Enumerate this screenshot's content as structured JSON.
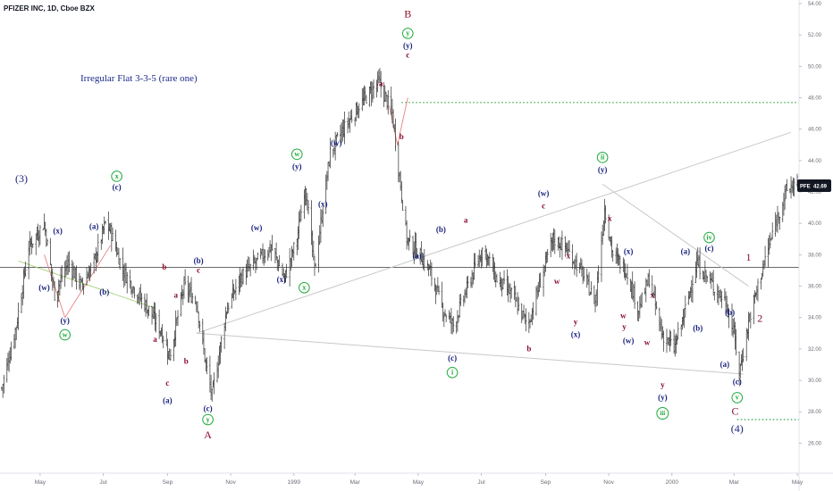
{
  "header": {
    "symbol_line": "PFIZER INC, 1D, Cboe BZX"
  },
  "annotation_title": "Irregular Flat 3-3-5 (rare one)",
  "price_tag": {
    "symbol": "PFE",
    "value": "42.69"
  },
  "colors": {
    "navy": "#1a237e",
    "maroon": "#8b0d2c",
    "green": "#1faa3c",
    "bar": "#2b2b2b",
    "dotted_green": "#26a23c",
    "trend_gray": "#c8c8c8",
    "horizontal": "#555555",
    "price_tag_bg": "#131722"
  },
  "chart_data": {
    "type": "line",
    "subtitle": "PFIZER INC, 1D, Cboe BZX",
    "title": "Irregular Flat 3-3-5 (rare one)",
    "ylim": [
      25,
      54
    ],
    "y_ticks": [
      "26.00",
      "28.00",
      "30.00",
      "32.00",
      "34.00",
      "36.00",
      "38.00",
      "40.00",
      "42.00",
      "44.00",
      "46.00",
      "48.00",
      "50.00",
      "52.00",
      "54.00"
    ],
    "x_ticks": [
      "May",
      "Jul",
      "Sep",
      "Nov",
      "1999",
      "Mar",
      "May",
      "Jul",
      "Sep",
      "Nov",
      "2000",
      "Mar",
      "May"
    ],
    "x_dates": [
      "1998-03-25",
      "1998-05-01",
      "1998-07-01",
      "1998-09-01",
      "1998-11-01",
      "1999-01-01",
      "1999-03-01",
      "1999-05-01",
      "1999-07-01",
      "1999-09-01",
      "1999-11-01",
      "2000-01-01",
      "2000-03-01",
      "2000-05-01"
    ],
    "series": [
      {
        "x": [
          "1998-03-25",
          "1998-04-08",
          "1998-04-20",
          "1998-05-05",
          "1998-05-15",
          "1998-05-28",
          "1998-06-10",
          "1998-06-22",
          "1998-07-03",
          "1998-07-08",
          "1998-07-20",
          "1998-08-03",
          "1998-08-14",
          "1998-08-27",
          "1998-09-03",
          "1998-09-17",
          "1998-09-29",
          "1998-10-08",
          "1998-10-14",
          "1998-10-28",
          "1998-11-10",
          "1998-11-25",
          "1998-12-10",
          "1998-12-23",
          "1999-01-04",
          "1999-01-12",
          "1999-01-21",
          "1999-02-05",
          "1999-02-18",
          "1999-03-05",
          "1999-03-24",
          "1999-04-06",
          "1999-04-13",
          "1999-04-20",
          "1999-05-03",
          "1999-05-12",
          "1999-05-25",
          "1999-06-04",
          "1999-06-18",
          "1999-07-03",
          "1999-07-15",
          "1999-07-30",
          "1999-08-15",
          "1999-08-30",
          "1999-09-08",
          "1999-09-20",
          "1999-10-05",
          "1999-10-19",
          "1999-10-28",
          "1999-11-05",
          "1999-11-18",
          "1999-11-30",
          "1999-12-10",
          "1999-12-22",
          "2000-01-03",
          "2000-01-12",
          "2000-01-25",
          "2000-02-10",
          "2000-02-22",
          "2000-03-01",
          "2000-03-06",
          "2000-03-16",
          "2000-03-28",
          "2000-04-10",
          "2000-04-20",
          "2000-05-01"
        ],
        "values": [
          29.5,
          33.5,
          38.5,
          40.0,
          35.5,
          37.5,
          36.0,
          37.5,
          40.0,
          39.5,
          37.0,
          35.5,
          34.5,
          33.0,
          31.5,
          36.0,
          35.0,
          31.0,
          29.0,
          34.5,
          36.5,
          37.5,
          38.5,
          36.5,
          39.0,
          42.5,
          37.0,
          44.5,
          46.0,
          47.5,
          49.0,
          47.0,
          43.0,
          39.0,
          38.0,
          37.0,
          34.5,
          33.5,
          36.0,
          38.5,
          36.5,
          35.5,
          33.5,
          37.0,
          39.0,
          38.5,
          37.0,
          35.0,
          41.0,
          38.0,
          37.0,
          34.5,
          36.5,
          33.0,
          32.0,
          34.0,
          37.5,
          36.0,
          35.0,
          33.0,
          30.5,
          34.0,
          37.0,
          40.0,
          42.0,
          42.7
        ]
      }
    ],
    "horizontal_lines": [
      {
        "y": 37.2,
        "style": "solid"
      },
      {
        "y": 47.7,
        "style": "dotted",
        "from": "1999-04-15",
        "to": "2000-05-01"
      },
      {
        "y": 27.5,
        "style": "dotted",
        "from": "2000-03-04",
        "to": "2000-05-01"
      }
    ],
    "trendlines": [
      {
        "from": [
          "1998-09-29",
          33.0
        ],
        "to": [
          "2000-04-25",
          45.8
        ]
      },
      {
        "from": [
          "1998-09-29",
          33.0
        ],
        "to": [
          "2000-03-10",
          30.4
        ]
      },
      {
        "from": [
          "1999-10-26",
          42.5
        ],
        "to": [
          "2000-03-15",
          36.0
        ]
      }
    ],
    "red_triangle_lines": [
      {
        "from": [
          "1998-05-25",
          34.0
        ],
        "to": [
          "1998-07-08",
          38.6
        ]
      },
      {
        "from": [
          "1998-05-25",
          34.0
        ],
        "to": [
          "1998-05-05",
          38.0
        ]
      },
      {
        "from": [
          "1999-04-03",
          47.5
        ],
        "to": [
          "1999-04-11",
          45.0
        ]
      },
      {
        "from": [
          "1999-04-11",
          45.0
        ],
        "to": [
          "1999-04-21",
          48.0
        ]
      }
    ],
    "wave_labels": [
      {
        "text": "(3)",
        "x": "1998-04-13",
        "y": 42.8,
        "color": "navy",
        "size": 12
      },
      {
        "text": "(x)",
        "x": "1998-05-18",
        "y": 39.5,
        "color": "navy",
        "size": 9
      },
      {
        "text": "(w)",
        "x": "1998-05-05",
        "y": 35.9,
        "color": "navy",
        "size": 9
      },
      {
        "text": "(y)",
        "x": "1998-05-25",
        "y": 33.8,
        "color": "navy",
        "size": 9
      },
      {
        "text": "w",
        "x": "1998-05-25",
        "y": 32.9,
        "color": "green",
        "size": 9,
        "circled": true
      },
      {
        "text": "(a)",
        "x": "1998-06-22",
        "y": 39.8,
        "color": "navy",
        "size": 9
      },
      {
        "text": "(b)",
        "x": "1998-07-02",
        "y": 35.6,
        "color": "navy",
        "size": 9
      },
      {
        "text": "x",
        "x": "1998-07-14",
        "y": 43.0,
        "color": "green",
        "size": 9,
        "circled": true
      },
      {
        "text": "(c)",
        "x": "1998-07-14",
        "y": 42.3,
        "color": "navy",
        "size": 9
      },
      {
        "text": "a",
        "x": "1998-08-20",
        "y": 32.6,
        "color": "maroon",
        "size": 9
      },
      {
        "text": "b",
        "x": "1998-08-29",
        "y": 37.2,
        "color": "maroon",
        "size": 9
      },
      {
        "text": "c",
        "x": "1998-09-01",
        "y": 29.8,
        "color": "maroon",
        "size": 9
      },
      {
        "text": "(a)",
        "x": "1998-09-01",
        "y": 28.7,
        "color": "navy",
        "size": 9
      },
      {
        "text": "a",
        "x": "1998-09-09",
        "y": 35.4,
        "color": "maroon",
        "size": 9
      },
      {
        "text": "b",
        "x": "1998-09-19",
        "y": 31.2,
        "color": "maroon",
        "size": 9
      },
      {
        "text": "(b)",
        "x": "1998-10-01",
        "y": 37.6,
        "color": "navy",
        "size": 9
      },
      {
        "text": "c",
        "x": "1998-10-01",
        "y": 37.0,
        "color": "maroon",
        "size": 9
      },
      {
        "text": "(c)",
        "x": "1998-10-10",
        "y": 28.2,
        "color": "navy",
        "size": 9
      },
      {
        "text": "y",
        "x": "1998-10-10",
        "y": 27.5,
        "color": "green",
        "size": 9,
        "circled": true
      },
      {
        "text": "A",
        "x": "1998-10-10",
        "y": 26.5,
        "color": "maroon",
        "size": 12
      },
      {
        "text": "(w)",
        "x": "1998-11-26",
        "y": 39.7,
        "color": "navy",
        "size": 9
      },
      {
        "text": "(x)",
        "x": "1998-12-20",
        "y": 36.4,
        "color": "navy",
        "size": 9
      },
      {
        "text": "(y)",
        "x": "1999-01-04",
        "y": 43.6,
        "color": "navy",
        "size": 9
      },
      {
        "text": "w",
        "x": "1999-01-04",
        "y": 44.4,
        "color": "green",
        "size": 9,
        "circled": true
      },
      {
        "text": "x",
        "x": "1999-01-11",
        "y": 35.9,
        "color": "green",
        "size": 9,
        "circled": true
      },
      {
        "text": "(x)",
        "x": "1999-01-29",
        "y": 41.2,
        "color": "navy",
        "size": 9
      },
      {
        "text": "(w)",
        "x": "1999-02-11",
        "y": 45.1,
        "color": "navy",
        "size": 9
      },
      {
        "text": "a",
        "x": "1999-03-26",
        "y": 48.9,
        "color": "maroon",
        "size": 9
      },
      {
        "text": "b",
        "x": "1999-04-15",
        "y": 45.5,
        "color": "maroon",
        "size": 9
      },
      {
        "text": "c",
        "x": "1999-04-21",
        "y": 50.7,
        "color": "maroon",
        "size": 9
      },
      {
        "text": "(y)",
        "x": "1999-04-21",
        "y": 51.3,
        "color": "navy",
        "size": 9
      },
      {
        "text": "y",
        "x": "1999-04-21",
        "y": 52.1,
        "color": "green",
        "size": 9,
        "circled": true
      },
      {
        "text": "B",
        "x": "1999-04-21",
        "y": 53.3,
        "color": "maroon",
        "size": 12
      },
      {
        "text": "(a)",
        "x": "1999-04-30",
        "y": 37.9,
        "color": "navy",
        "size": 9
      },
      {
        "text": "(b)",
        "x": "1999-05-23",
        "y": 39.6,
        "color": "navy",
        "size": 9
      },
      {
        "text": "(c)",
        "x": "1999-06-03",
        "y": 31.4,
        "color": "navy",
        "size": 9
      },
      {
        "text": "i",
        "x": "1999-06-03",
        "y": 30.5,
        "color": "green",
        "size": 9,
        "circled": true
      },
      {
        "text": "a",
        "x": "1999-06-16",
        "y": 40.2,
        "color": "maroon",
        "size": 9
      },
      {
        "text": "b",
        "x": "1999-08-16",
        "y": 32.0,
        "color": "maroon",
        "size": 9
      },
      {
        "text": "(w)",
        "x": "1999-08-30",
        "y": 41.9,
        "color": "navy",
        "size": 9
      },
      {
        "text": "c",
        "x": "1999-08-30",
        "y": 41.1,
        "color": "maroon",
        "size": 9
      },
      {
        "text": "x",
        "x": "1999-09-23",
        "y": 37.9,
        "color": "maroon",
        "size": 9
      },
      {
        "text": "w",
        "x": "1999-09-12",
        "y": 36.3,
        "color": "maroon",
        "size": 9
      },
      {
        "text": "y",
        "x": "1999-09-30",
        "y": 33.7,
        "color": "maroon",
        "size": 9
      },
      {
        "text": "(x)",
        "x": "1999-09-30",
        "y": 32.9,
        "color": "navy",
        "size": 9
      },
      {
        "text": "ii",
        "x": "1999-10-26",
        "y": 44.2,
        "color": "green",
        "size": 9,
        "circled": true
      },
      {
        "text": "(y)",
        "x": "1999-10-26",
        "y": 43.4,
        "color": "navy",
        "size": 9
      },
      {
        "text": "x",
        "x": "1999-11-02",
        "y": 40.3,
        "color": "maroon",
        "size": 9
      },
      {
        "text": "(x)",
        "x": "1999-11-20",
        "y": 38.2,
        "color": "navy",
        "size": 9
      },
      {
        "text": "w",
        "x": "1999-11-15",
        "y": 34.1,
        "color": "maroon",
        "size": 9
      },
      {
        "text": "y",
        "x": "1999-11-16",
        "y": 33.4,
        "color": "maroon",
        "size": 9
      },
      {
        "text": "(w)",
        "x": "1999-11-20",
        "y": 32.5,
        "color": "navy",
        "size": 9
      },
      {
        "text": "x",
        "x": "1999-12-13",
        "y": 35.4,
        "color": "maroon",
        "size": 9
      },
      {
        "text": "w",
        "x": "1999-12-08",
        "y": 32.4,
        "color": "maroon",
        "size": 9
      },
      {
        "text": "y",
        "x": "1999-12-23",
        "y": 29.7,
        "color": "maroon",
        "size": 9
      },
      {
        "text": "(y)",
        "x": "1999-12-23",
        "y": 28.9,
        "color": "navy",
        "size": 9
      },
      {
        "text": "iii",
        "x": "1999-12-23",
        "y": 27.9,
        "color": "green",
        "size": 9,
        "circled": true
      },
      {
        "text": "(a)",
        "x": "2000-01-14",
        "y": 38.2,
        "color": "navy",
        "size": 9
      },
      {
        "text": "(b)",
        "x": "2000-01-26",
        "y": 33.3,
        "color": "navy",
        "size": 9
      },
      {
        "text": "iv",
        "x": "2000-02-06",
        "y": 39.1,
        "color": "green",
        "size": 9,
        "circled": true
      },
      {
        "text": "(c)",
        "x": "2000-02-06",
        "y": 38.4,
        "color": "navy",
        "size": 9
      },
      {
        "text": "(b)",
        "x": "2000-02-26",
        "y": 34.3,
        "color": "navy",
        "size": 9
      },
      {
        "text": "(a)",
        "x": "2000-02-21",
        "y": 31.0,
        "color": "navy",
        "size": 9
      },
      {
        "text": "(c)",
        "x": "2000-03-04",
        "y": 29.9,
        "color": "navy",
        "size": 9
      },
      {
        "text": "v",
        "x": "2000-03-04",
        "y": 28.9,
        "color": "green",
        "size": 9,
        "circled": true
      },
      {
        "text": "C",
        "x": "2000-03-02",
        "y": 28.0,
        "color": "maroon",
        "size": 12
      },
      {
        "text": "(4)",
        "x": "2000-03-04",
        "y": 26.9,
        "color": "navy",
        "size": 12
      },
      {
        "text": "1",
        "x": "2000-03-15",
        "y": 37.8,
        "color": "maroon",
        "size": 12
      },
      {
        "text": "2",
        "x": "2000-03-26",
        "y": 33.9,
        "color": "maroon",
        "size": 12
      }
    ]
  }
}
